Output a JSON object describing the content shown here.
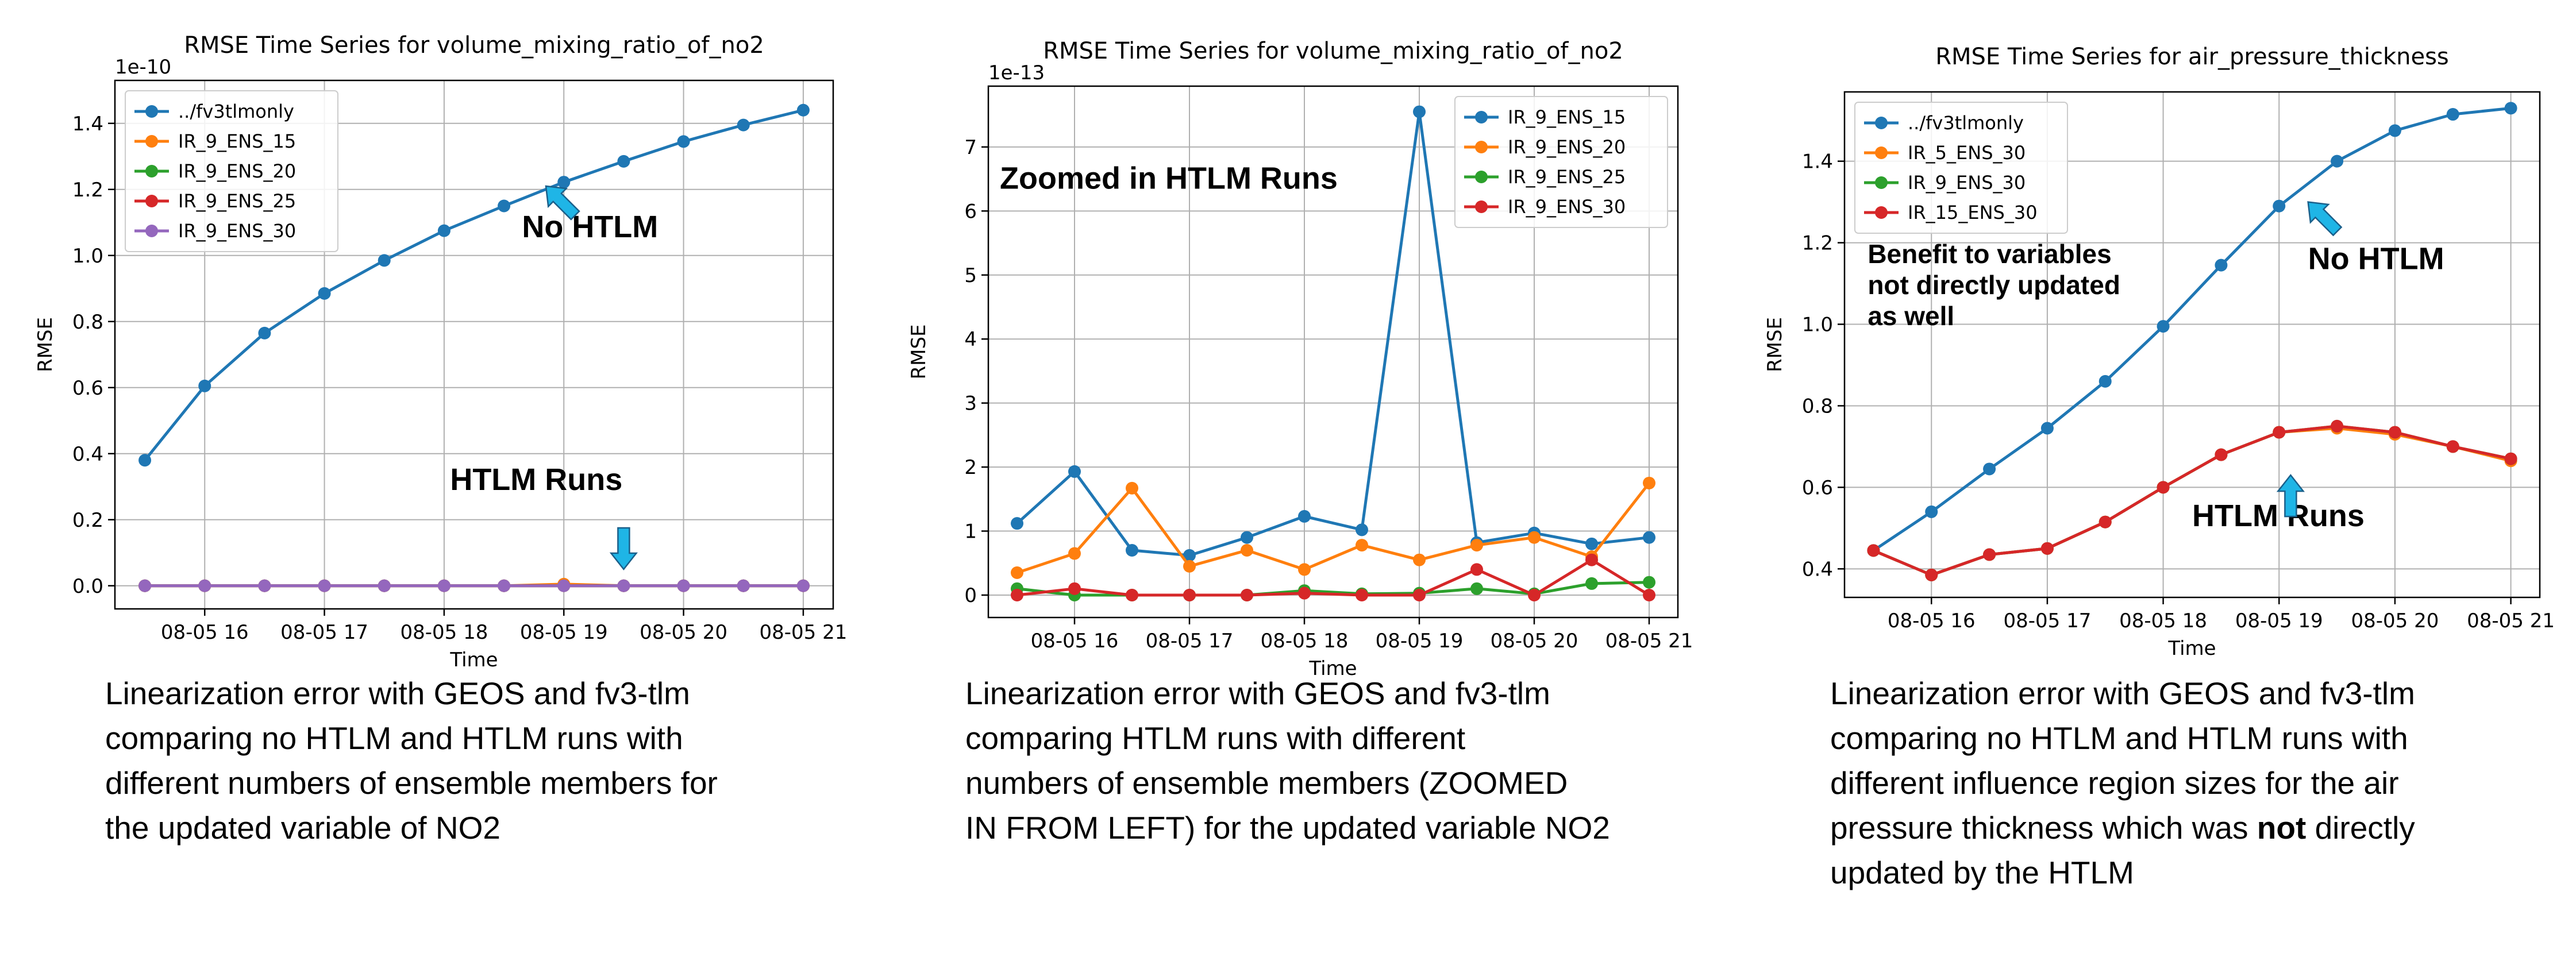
{
  "colors": {
    "C0": "#1f77b4",
    "C1": "#ff7f0e",
    "C2": "#2ca02c",
    "C3": "#d62728",
    "C4": "#9467bd",
    "annot_arrow": "#1fb5e6"
  },
  "chart_data": [
    {
      "type": "line",
      "title": "RMSE Time Series for volume_mixing_ratio_of_no2",
      "xlabel": "Time",
      "ylabel": "RMSE",
      "y_offset_label": "1e-10",
      "xlim": [
        15.25,
        21.25
      ],
      "ylim": [
        -0.07,
        1.53
      ],
      "x_ticks": [
        16,
        17,
        18,
        19,
        20,
        21
      ],
      "x_tick_labels": [
        "08-05 16",
        "08-05 17",
        "08-05 18",
        "08-05 19",
        "08-05 20",
        "08-05 21"
      ],
      "y_ticks": [
        0.0,
        0.2,
        0.4,
        0.6,
        0.8,
        1.0,
        1.2,
        1.4
      ],
      "y_tick_labels": [
        "0.0",
        "0.2",
        "0.4",
        "0.6",
        "0.8",
        "1.0",
        "1.2",
        "1.4"
      ],
      "grid": true,
      "legend_position": "upper-left",
      "x": [
        15.5,
        16.0,
        16.5,
        17.0,
        17.5,
        18.0,
        18.5,
        19.0,
        19.5,
        20.0,
        20.5,
        21.0
      ],
      "series": [
        {
          "name": "../fv3tlmonly",
          "color": "#1f77b4",
          "values": [
            0.38,
            0.605,
            0.765,
            0.885,
            0.985,
            1.075,
            1.15,
            1.222,
            1.285,
            1.345,
            1.395,
            1.44
          ]
        },
        {
          "name": "IR_9_ENS_15",
          "color": "#ff7f0e",
          "values": [
            0.0,
            0.0,
            0.0,
            0.0,
            0.0,
            0.0,
            0.0,
            0.005,
            0.0,
            0.0,
            0.0,
            0.0
          ]
        },
        {
          "name": "IR_9_ENS_20",
          "color": "#2ca02c",
          "values": [
            0.0,
            0.0,
            0.0,
            0.0,
            0.0,
            0.0,
            0.0,
            0.0,
            0.0,
            0.0,
            0.0,
            0.0
          ]
        },
        {
          "name": "IR_9_ENS_25",
          "color": "#d62728",
          "values": [
            0.0,
            0.0,
            0.0,
            0.0,
            0.0,
            0.0,
            0.0,
            0.0,
            0.0,
            0.0,
            0.0,
            0.0
          ]
        },
        {
          "name": "IR_9_ENS_30",
          "color": "#9467bd",
          "values": [
            0.0,
            0.0,
            0.0,
            0.0,
            0.0,
            0.0,
            0.0,
            0.0,
            0.0,
            0.0,
            0.0,
            0.0
          ]
        }
      ],
      "annotations": [
        {
          "text": "No HTLM",
          "x": 18.65,
          "y": 1.055,
          "arrow": {
            "x": 18.85,
            "y": 1.21,
            "dir": "up-left"
          }
        },
        {
          "text": "HTLM Runs",
          "x": 18.05,
          "y": 0.29,
          "arrow": {
            "x": 19.5,
            "y": 0.05,
            "dir": "down"
          }
        }
      ]
    },
    {
      "type": "line",
      "title": "RMSE Time Series for volume_mixing_ratio_of_no2",
      "xlabel": "Time",
      "ylabel": "RMSE",
      "y_offset_label": "1e-13",
      "xlim": [
        15.25,
        21.25
      ],
      "ylim": [
        -0.35,
        7.95
      ],
      "x_ticks": [
        16,
        17,
        18,
        19,
        20,
        21
      ],
      "x_tick_labels": [
        "08-05 16",
        "08-05 17",
        "08-05 18",
        "08-05 19",
        "08-05 20",
        "08-05 21"
      ],
      "y_ticks": [
        0,
        1,
        2,
        3,
        4,
        5,
        6,
        7
      ],
      "y_tick_labels": [
        "0",
        "1",
        "2",
        "3",
        "4",
        "5",
        "6",
        "7"
      ],
      "grid": true,
      "legend_position": "upper-right",
      "x": [
        15.5,
        16.0,
        16.5,
        17.0,
        17.5,
        18.0,
        18.5,
        19.0,
        19.5,
        20.0,
        20.5,
        21.0
      ],
      "series": [
        {
          "name": "IR_9_ENS_15",
          "color": "#1f77b4",
          "values": [
            1.12,
            1.93,
            0.7,
            0.62,
            0.9,
            1.23,
            1.02,
            7.55,
            0.82,
            0.97,
            0.8,
            0.9
          ]
        },
        {
          "name": "IR_9_ENS_20",
          "color": "#ff7f0e",
          "values": [
            0.35,
            0.65,
            1.67,
            0.45,
            0.7,
            0.4,
            0.78,
            0.55,
            0.78,
            0.9,
            0.6,
            1.75
          ]
        },
        {
          "name": "IR_9_ENS_25",
          "color": "#2ca02c",
          "values": [
            0.1,
            0.0,
            0.0,
            0.0,
            0.0,
            0.07,
            0.02,
            0.03,
            0.1,
            0.02,
            0.18,
            0.2
          ]
        },
        {
          "name": "IR_9_ENS_30",
          "color": "#d62728",
          "values": [
            0.0,
            0.1,
            0.0,
            0.0,
            0.0,
            0.03,
            0.0,
            0.0,
            0.4,
            0.0,
            0.55,
            0.0
          ]
        }
      ],
      "annotations": [
        {
          "text": "Zoomed in HTLM Runs",
          "x": 15.35,
          "y": 6.35
        }
      ]
    },
    {
      "type": "line",
      "title": "RMSE Time Series for air_pressure_thickness",
      "xlabel": "Time",
      "ylabel": "RMSE",
      "xlim": [
        15.25,
        21.25
      ],
      "ylim": [
        0.33,
        1.57
      ],
      "x_ticks": [
        16,
        17,
        18,
        19,
        20,
        21
      ],
      "x_tick_labels": [
        "08-05 16",
        "08-05 17",
        "08-05 18",
        "08-05 19",
        "08-05 20",
        "08-05 21"
      ],
      "y_ticks": [
        0.4,
        0.6,
        0.8,
        1.0,
        1.2,
        1.4
      ],
      "y_tick_labels": [
        "0.4",
        "0.6",
        "0.8",
        "1.0",
        "1.2",
        "1.4"
      ],
      "grid": true,
      "legend_position": "upper-left",
      "x": [
        15.5,
        16.0,
        16.5,
        17.0,
        17.5,
        18.0,
        18.5,
        19.0,
        19.5,
        20.0,
        20.5,
        21.0
      ],
      "series": [
        {
          "name": "../fv3tlmonly",
          "color": "#1f77b4",
          "values": [
            0.445,
            0.54,
            0.645,
            0.745,
            0.86,
            0.995,
            1.145,
            1.29,
            1.4,
            1.475,
            1.515,
            1.53
          ]
        },
        {
          "name": "IR_5_ENS_30",
          "color": "#ff7f0e",
          "values": [
            0.445,
            0.385,
            0.435,
            0.45,
            0.515,
            0.6,
            0.68,
            0.735,
            0.745,
            0.73,
            0.7,
            0.665
          ]
        },
        {
          "name": "IR_9_ENS_30",
          "color": "#2ca02c",
          "values": [
            0.445,
            0.385,
            0.435,
            0.45,
            0.515,
            0.6,
            0.68,
            0.735,
            0.75,
            0.735,
            0.7,
            0.67
          ]
        },
        {
          "name": "IR_15_ENS_30",
          "color": "#d62728",
          "values": [
            0.445,
            0.385,
            0.435,
            0.45,
            0.515,
            0.6,
            0.68,
            0.735,
            0.75,
            0.735,
            0.7,
            0.67
          ]
        }
      ],
      "annotations": [
        {
          "text": "Benefit to variables\nnot directly updated\nas well",
          "x": 15.45,
          "y": 1.15
        },
        {
          "text": "No HTLM",
          "x": 19.25,
          "y": 1.135,
          "arrow": {
            "x": 19.25,
            "y": 1.3,
            "dir": "up-left"
          }
        },
        {
          "text": "HTLM Runs",
          "x": 18.25,
          "y": 0.505,
          "arrow": {
            "x": 19.1,
            "y": 0.63,
            "dir": "up"
          }
        }
      ]
    }
  ],
  "captions": [
    {
      "lines": [
        "Linearization error with GEOS and fv3-tlm",
        "comparing no HTLM and HTLM runs with",
        "different numbers of ensemble members for",
        "the updated variable of NO2"
      ]
    },
    {
      "lines": [
        "Linearization error with GEOS and fv3-tlm",
        "comparing HTLM runs with different",
        "numbers of ensemble members (ZOOMED",
        "IN FROM LEFT) for the updated variable NO2"
      ]
    },
    {
      "lines": [
        "Linearization error with GEOS and fv3-tlm",
        "comparing no HTLM and HTLM runs with",
        "different influence region sizes for the air",
        "pressure thickness which was |not| directly",
        "updated by the HTLM"
      ]
    }
  ]
}
